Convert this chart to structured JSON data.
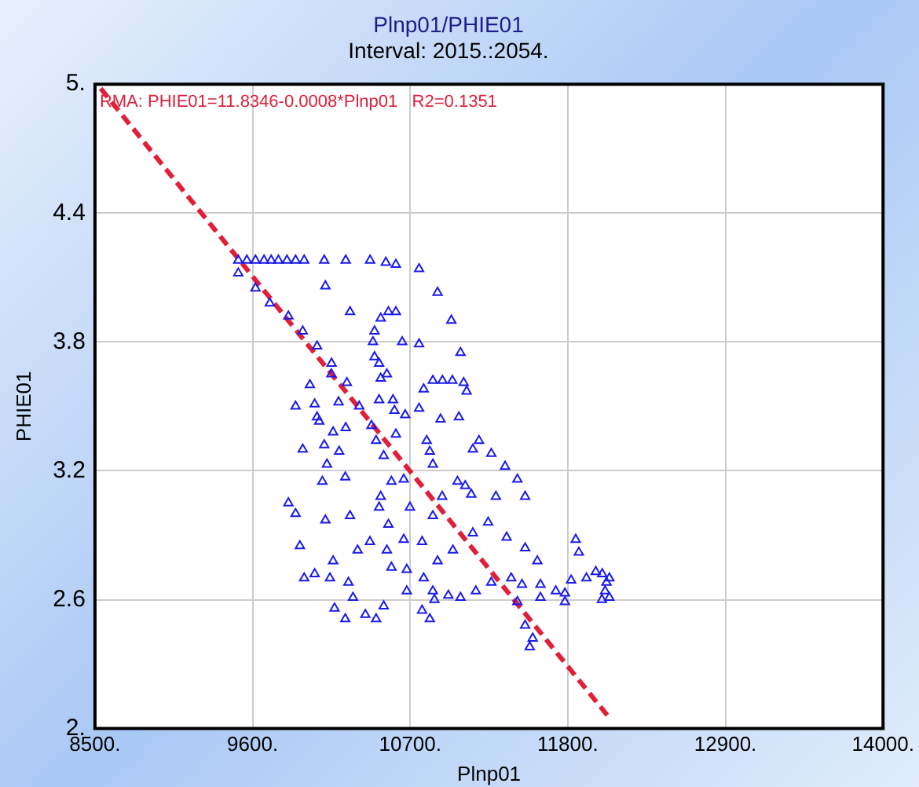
{
  "chart_data": {
    "type": "scatter",
    "title": "Plnp01/PHIE01",
    "subtitle": "Interval: 2015.:2054.",
    "xlabel": "Plnp01",
    "ylabel": "PHIE01",
    "annotations": [
      "RMA: PHIE01=11.8346-0.0008*Plnp01   R2=0.1351"
    ],
    "xlim": [
      8500,
      14000
    ],
    "xticks": [
      {
        "value": 8500,
        "label": "8500."
      },
      {
        "value": 9600,
        "label": "9600."
      },
      {
        "value": 10700,
        "label": "10700."
      },
      {
        "value": 11800,
        "label": "11800."
      },
      {
        "value": 12900,
        "label": "12900."
      },
      {
        "value": 14000,
        "label": "14000."
      }
    ],
    "ylim": [
      2,
      5
    ],
    "yticks": [
      {
        "value": 2,
        "label": "2."
      },
      2.6,
      3.2,
      3.8,
      4.4,
      {
        "value": 5,
        "label": "5."
      }
    ],
    "grid": true,
    "legend": false,
    "marker": "triangle",
    "series": [
      {
        "color": "#1a1aee",
        "x": [
          9500,
          9560,
          9620,
          9680,
          9730,
          9780,
          9840,
          9900,
          9960,
          10100,
          10250,
          10420,
          10530,
          10600,
          10762,
          9500,
          9620,
          9720,
          9850,
          9950,
          10050,
          10000,
          10150,
          10050,
          10200,
          10100,
          10250,
          10891,
          10987,
          10280,
          10548,
          10600,
          10494,
          10451,
          10440,
          10644,
          10762,
          11051,
          10108,
          10151,
          10258,
          10451,
          10483,
          10494,
          10537,
          10858,
          10925,
          10994,
          11073,
          11094,
          10794,
          10344,
          10483,
          10580,
          10590,
          10665,
          10762,
          10912,
          11040,
          10065,
          10162,
          10430,
          10462,
          10600,
          10815,
          11180,
          11137,
          11266,
          10204,
          10033,
          10119,
          10515,
          10837,
          10858,
          11362,
          11448,
          10087,
          10247,
          10569,
          10655,
          11030,
          11084,
          11298,
          11502,
          10923,
          11126,
          10494,
          10698,
          10483,
          10280,
          10108,
          10548,
          10858,
          11244,
          11137,
          11373,
          10419,
          10333,
          10655,
          10783,
          10998,
          11502,
          11587,
          11855,
          11877,
          10537,
          10569,
          10676,
          10891,
          10162,
          10033,
          10140,
          10269,
          10794,
          10858,
          10676,
          10966,
          11051,
          11158,
          11266,
          11405,
          11480,
          11609,
          11716,
          11780,
          11823,
          11930,
          11995,
          12070,
          12038,
          11780,
          11609,
          11448,
          10301,
          10172,
          10247,
          10387,
          10462,
          10783,
          10837,
          10869,
          10515,
          11502,
          11555,
          11534,
          12040,
          12090,
          12060,
          12090,
          9900,
          9950,
          9850,
          9930,
          9960,
          9900
        ],
        "values": [
          4.18,
          4.18,
          4.18,
          4.18,
          4.18,
          4.18,
          4.18,
          4.18,
          4.18,
          4.18,
          4.18,
          4.18,
          4.17,
          4.16,
          4.14,
          4.12,
          4.05,
          3.98,
          3.92,
          3.85,
          3.78,
          3.6,
          3.65,
          3.45,
          3.52,
          3.32,
          3.4,
          4.03,
          3.9,
          3.94,
          3.94,
          3.94,
          3.91,
          3.85,
          3.8,
          3.8,
          3.79,
          3.75,
          4.06,
          3.7,
          3.61,
          3.73,
          3.7,
          3.63,
          3.65,
          3.62,
          3.62,
          3.62,
          3.61,
          3.57,
          3.58,
          3.5,
          3.53,
          3.53,
          3.48,
          3.46,
          3.49,
          3.44,
          3.45,
          3.43,
          3.38,
          3.41,
          3.34,
          3.37,
          3.34,
          3.34,
          3.3,
          3.28,
          3.29,
          3.51,
          3.23,
          3.27,
          3.29,
          3.23,
          3.22,
          3.16,
          3.15,
          3.17,
          3.15,
          3.16,
          3.15,
          3.13,
          3.08,
          3.08,
          3.08,
          3.09,
          3.08,
          3.03,
          3.03,
          2.99,
          2.97,
          2.95,
          2.99,
          2.96,
          2.91,
          2.89,
          2.87,
          2.83,
          2.88,
          2.87,
          2.83,
          2.84,
          2.78,
          2.88,
          2.82,
          2.83,
          2.75,
          2.74,
          2.78,
          2.78,
          2.72,
          2.7,
          2.68,
          2.7,
          2.64,
          2.64,
          2.62,
          2.61,
          2.64,
          2.68,
          2.7,
          2.67,
          2.67,
          2.64,
          2.63,
          2.69,
          2.7,
          2.73,
          2.68,
          2.6,
          2.59,
          2.61,
          2.59,
          2.61,
          2.56,
          2.51,
          2.53,
          2.51,
          2.55,
          2.51,
          2.6,
          2.57,
          2.48,
          2.42,
          2.38,
          2.72,
          2.7,
          2.64,
          2.61,
          3.5,
          3.3,
          3.05,
          2.85,
          2.7,
          3.0
        ]
      },
      {
        "type": "line",
        "color": "#e0203a",
        "line_style": "dashed",
        "marker": "none",
        "x": [
          8540,
          12090
        ],
        "values": [
          4.98,
          2.05
        ]
      }
    ]
  }
}
